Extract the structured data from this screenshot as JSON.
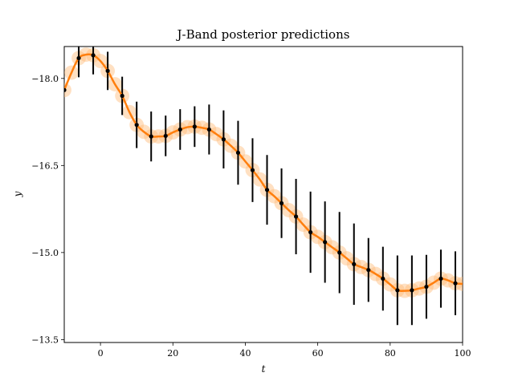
{
  "chart_data": {
    "type": "line",
    "title": "J-Band posterior predictions",
    "xlabel": "t",
    "ylabel": "y",
    "xlim": [
      -10,
      100
    ],
    "ylim": [
      -18.55,
      -13.45
    ],
    "y_inverted": true,
    "xticks": [
      0,
      20,
      40,
      60,
      80,
      100
    ],
    "yticks": [
      -18.0,
      -16.5,
      -15.0,
      -13.5
    ],
    "xtick_labels": [
      "0",
      "20",
      "40",
      "60",
      "80",
      "100"
    ],
    "ytick_labels": [
      "−18.0",
      "−16.5",
      "−15.0",
      "−13.5"
    ],
    "grid": false,
    "colors": {
      "prediction": "#ff7f0e",
      "band": "#ffbb78",
      "observations": "#000000"
    },
    "series": [
      {
        "kind": "observations",
        "x": [
          -10,
          -6,
          -2,
          2,
          6,
          10,
          14,
          18,
          22,
          26,
          30,
          34,
          38,
          42,
          46,
          50,
          54,
          58,
          62,
          66,
          70,
          74,
          78,
          82,
          86,
          90,
          94,
          98
        ],
        "y": [
          -17.8,
          -18.35,
          -18.4,
          -18.13,
          -17.7,
          -17.2,
          -17.0,
          -17.01,
          -17.12,
          -17.17,
          -17.12,
          -16.95,
          -16.72,
          -16.42,
          -16.08,
          -15.85,
          -15.62,
          -15.35,
          -15.18,
          -15.0,
          -14.8,
          -14.7,
          -14.55,
          -14.35,
          -14.35,
          -14.41,
          -14.55,
          -14.47
        ],
        "err": [
          0,
          0.33,
          0.33,
          0.33,
          0.33,
          0.4,
          0.43,
          0.35,
          0.35,
          0.35,
          0.43,
          0.5,
          0.55,
          0.55,
          0.6,
          0.6,
          0.65,
          0.7,
          0.7,
          0.7,
          0.7,
          0.55,
          0.55,
          0.6,
          0.6,
          0.55,
          0.5,
          0.55
        ]
      },
      {
        "kind": "prediction",
        "x": [
          -10,
          -8,
          -6,
          -4,
          -2,
          0,
          2,
          4,
          6,
          8,
          10,
          12,
          14,
          16,
          18,
          20,
          22,
          24,
          26,
          28,
          30,
          32,
          34,
          36,
          38,
          40,
          42,
          44,
          46,
          48,
          50,
          52,
          54,
          56,
          58,
          60,
          62,
          64,
          66,
          68,
          70,
          72,
          74,
          76,
          78,
          80,
          82,
          84,
          86,
          88,
          90,
          92,
          94,
          96,
          98,
          100
        ],
        "y": [
          -17.8,
          -18.1,
          -18.35,
          -18.41,
          -18.4,
          -18.3,
          -18.13,
          -17.9,
          -17.7,
          -17.42,
          -17.2,
          -17.08,
          -17.0,
          -17.0,
          -17.01,
          -17.07,
          -17.12,
          -17.16,
          -17.17,
          -17.15,
          -17.12,
          -17.04,
          -16.95,
          -16.84,
          -16.72,
          -16.57,
          -16.42,
          -16.26,
          -16.08,
          -15.97,
          -15.85,
          -15.73,
          -15.62,
          -15.48,
          -15.35,
          -15.27,
          -15.18,
          -15.09,
          -15.0,
          -14.9,
          -14.8,
          -14.75,
          -14.7,
          -14.63,
          -14.55,
          -14.45,
          -14.35,
          -14.34,
          -14.35,
          -14.38,
          -14.41,
          -14.48,
          -14.55,
          -14.52,
          -14.47,
          -14.46
        ]
      }
    ],
    "band_halfwidth": 0.13
  }
}
